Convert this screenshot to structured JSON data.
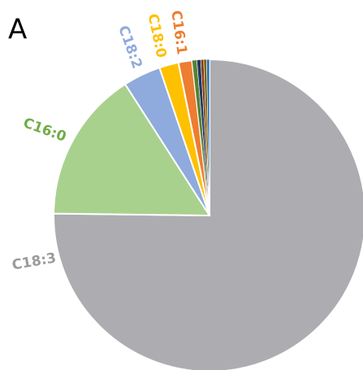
{
  "chart_data": {
    "type": "pie",
    "panel_label": "A",
    "categories": [
      "C18:3",
      "C16:0",
      "C18:2",
      "C18:0",
      "C16:1",
      null,
      null,
      null,
      null,
      null
    ],
    "values": [
      75.2,
      15.7,
      3.9,
      2.0,
      1.4,
      0.5,
      0.4,
      0.3,
      0.3,
      0.3
    ],
    "colors": [
      "#adadb1",
      "#a9d18e",
      "#8faadc",
      "#ffc000",
      "#ed7d31",
      "#548235",
      "#203864",
      "#843c0c",
      "#7f6000",
      "#2e75b6"
    ],
    "label_colors": [
      "#9a9a9e",
      "#70ad47",
      "#8faadc",
      "#ffc000",
      "#ed7d31",
      null,
      null,
      null,
      null,
      null
    ],
    "start_angle": 0,
    "direction": "clockwise"
  }
}
